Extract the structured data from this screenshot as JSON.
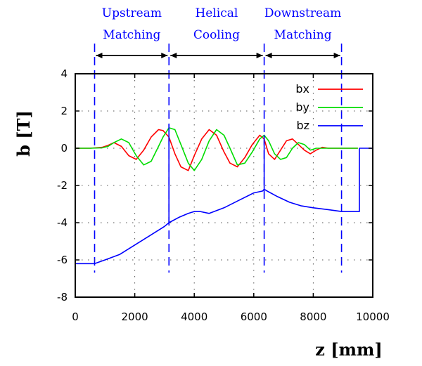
{
  "chart_data": {
    "type": "line",
    "xlabel": "z [mm]",
    "ylabel": "b [T]",
    "xlim": [
      0,
      10000
    ],
    "ylim": [
      -8,
      4
    ],
    "x_ticks": [
      "0",
      "2000",
      "4000",
      "6000",
      "8000",
      "10000"
    ],
    "y_ticks": [
      "4",
      "2",
      "0",
      "-2",
      "-4",
      "-6",
      "-8"
    ],
    "grid": true,
    "legend_position": "top-right",
    "region_labels": [
      {
        "line1": "Upstream",
        "line2": "Matching",
        "z_start": 650,
        "z_end": 3150
      },
      {
        "line1": "Helical",
        "line2": "Cooling",
        "z_start": 3150,
        "z_end": 6350
      },
      {
        "line1": "Downstream",
        "line2": "Matching",
        "z_start": 6350,
        "z_end": 8950
      }
    ],
    "boundaries_z": [
      650,
      3150,
      6350,
      8950
    ],
    "series": [
      {
        "name": "bx",
        "color": "#ff0000",
        "x": [
          0,
          500,
          900,
          1100,
          1300,
          1550,
          1800,
          2050,
          2300,
          2550,
          2800,
          2950,
          3150,
          3350,
          3550,
          3800,
          4000,
          4250,
          4500,
          4750,
          5000,
          5200,
          5450,
          5700,
          5950,
          6200,
          6350,
          6500,
          6700,
          6900,
          7100,
          7300,
          7500,
          7700,
          7900,
          8100,
          8300,
          8500,
          8700,
          8950,
          9500
        ],
        "values": [
          0,
          0,
          0.05,
          0.15,
          0.3,
          0.1,
          -0.4,
          -0.6,
          -0.1,
          0.6,
          1.0,
          0.95,
          0.6,
          -0.3,
          -1.0,
          -1.2,
          -0.4,
          0.5,
          1.0,
          0.7,
          -0.2,
          -0.8,
          -1.0,
          -0.5,
          0.2,
          0.7,
          0.5,
          -0.3,
          -0.6,
          -0.1,
          0.4,
          0.5,
          0.2,
          -0.1,
          -0.3,
          -0.1,
          0.05,
          0,
          0,
          0,
          0
        ]
      },
      {
        "name": "by",
        "color": "#00dd00",
        "x": [
          0,
          500,
          900,
          1100,
          1300,
          1550,
          1800,
          2050,
          2300,
          2550,
          2800,
          2950,
          3150,
          3350,
          3550,
          3800,
          4000,
          4250,
          4500,
          4750,
          5000,
          5200,
          5450,
          5700,
          5950,
          6200,
          6350,
          6500,
          6700,
          6900,
          7100,
          7300,
          7500,
          7700,
          7900,
          8100,
          8300,
          8500,
          8700,
          8950,
          9500
        ],
        "values": [
          0,
          0,
          0.02,
          0.1,
          0.3,
          0.5,
          0.3,
          -0.4,
          -0.9,
          -0.7,
          0.1,
          0.6,
          1.1,
          1.0,
          0.2,
          -0.8,
          -1.2,
          -0.6,
          0.4,
          1.0,
          0.7,
          0.0,
          -0.9,
          -0.8,
          -0.2,
          0.5,
          0.7,
          0.4,
          -0.3,
          -0.6,
          -0.5,
          0.0,
          0.3,
          0.2,
          -0.1,
          0.0,
          0.0,
          0.0,
          0,
          0,
          0
        ]
      },
      {
        "name": "bz",
        "color": "#0000ff",
        "x": [
          0,
          650,
          1000,
          1500,
          2000,
          2500,
          3000,
          3150,
          3150,
          3150,
          3500,
          3800,
          4000,
          4200,
          4500,
          5000,
          5500,
          6000,
          6300,
          6350,
          6350,
          6350,
          6450,
          6800,
          7200,
          7600,
          8000,
          8500,
          8950,
          9500,
          9550,
          9550,
          10000
        ],
        "values": [
          -6.2,
          -6.2,
          -6.0,
          -5.7,
          -5.2,
          -4.7,
          -4.2,
          -4.0,
          1.3,
          -4.0,
          -3.7,
          -3.5,
          -3.4,
          -3.4,
          -3.5,
          -3.2,
          -2.8,
          -2.4,
          -2.3,
          -2.2,
          0.7,
          -2.2,
          -2.3,
          -2.6,
          -2.9,
          -3.1,
          -3.2,
          -3.3,
          -3.4,
          -3.4,
          -3.4,
          0.0,
          0.0
        ]
      }
    ]
  }
}
